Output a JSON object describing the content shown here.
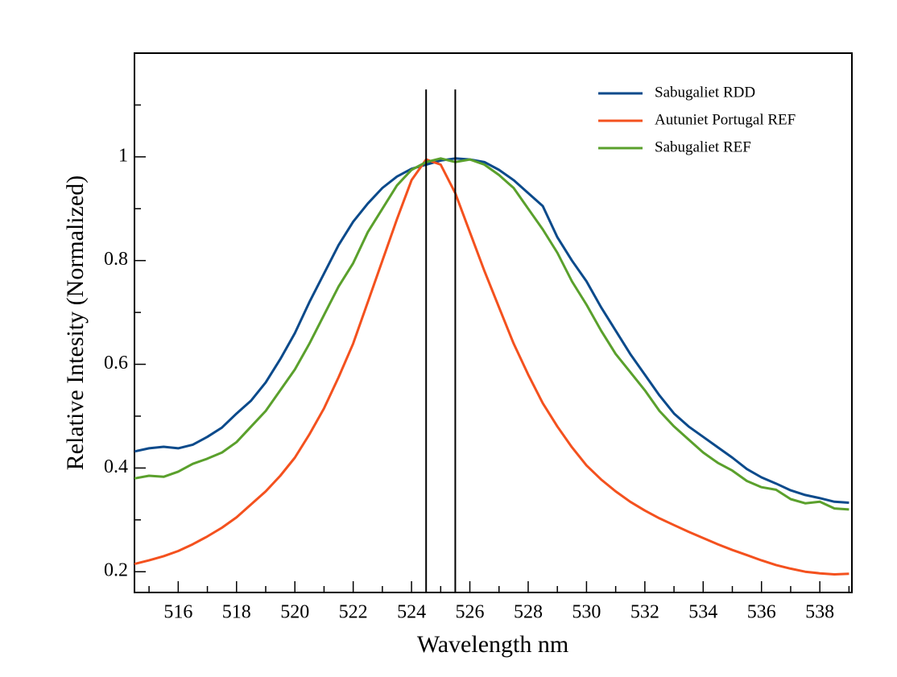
{
  "chart_data": {
    "type": "line",
    "xlabel": "Wavelength nm",
    "ylabel": "Relative Intesity (Normalized)",
    "xlim": [
      514.5,
      539.1
    ],
    "ylim": [
      0.16,
      1.2
    ],
    "xticks": [
      516,
      518,
      520,
      522,
      524,
      526,
      528,
      530,
      532,
      534,
      536,
      538
    ],
    "xticks_minor": [
      515,
      517,
      519,
      521,
      523,
      525,
      527,
      529,
      531,
      533,
      535,
      537,
      539
    ],
    "yticks": [
      0.2,
      0.4,
      0.6,
      0.8,
      1
    ],
    "yticks_minor": [
      0.3,
      0.5,
      0.7,
      0.9,
      1.1
    ],
    "legend": "upper right",
    "vlines": [
      {
        "x": 524.5,
        "ymax": 1.13,
        "color": "#000000"
      },
      {
        "x": 525.5,
        "ymax": 1.13,
        "color": "#000000"
      }
    ],
    "x": [
      514.5,
      515,
      515.5,
      516,
      516.5,
      517,
      517.5,
      518,
      518.5,
      519,
      519.5,
      520,
      520.5,
      521,
      521.5,
      522,
      522.5,
      523,
      523.5,
      524,
      524.5,
      525,
      525.5,
      526,
      526.5,
      527,
      527.5,
      528,
      528.5,
      529,
      529.5,
      530,
      530.5,
      531,
      531.5,
      532,
      532.5,
      533,
      533.5,
      534,
      534.5,
      535,
      535.5,
      536,
      536.5,
      537,
      537.5,
      538,
      538.5,
      539
    ],
    "series": [
      {
        "name": "Sabugaliet RDD",
        "color": "#0b4a8b",
        "values": [
          0.432,
          0.438,
          0.441,
          0.438,
          0.445,
          0.46,
          0.478,
          0.505,
          0.53,
          0.565,
          0.61,
          0.66,
          0.72,
          0.775,
          0.83,
          0.875,
          0.91,
          0.94,
          0.962,
          0.977,
          0.985,
          0.993,
          0.997,
          0.995,
          0.99,
          0.975,
          0.955,
          0.93,
          0.905,
          0.845,
          0.8,
          0.76,
          0.71,
          0.665,
          0.62,
          0.58,
          0.54,
          0.505,
          0.48,
          0.46,
          0.44,
          0.42,
          0.398,
          0.382,
          0.37,
          0.357,
          0.348,
          0.342,
          0.335,
          0.333
        ]
      },
      {
        "name": "Autuniet Portugal REF",
        "color": "#f4511e",
        "values": [
          0.215,
          0.222,
          0.23,
          0.24,
          0.253,
          0.268,
          0.285,
          0.305,
          0.33,
          0.355,
          0.385,
          0.42,
          0.465,
          0.515,
          0.575,
          0.64,
          0.72,
          0.8,
          0.88,
          0.955,
          0.995,
          0.985,
          0.93,
          0.855,
          0.78,
          0.71,
          0.64,
          0.58,
          0.525,
          0.48,
          0.44,
          0.405,
          0.378,
          0.355,
          0.335,
          0.318,
          0.303,
          0.29,
          0.277,
          0.265,
          0.253,
          0.242,
          0.232,
          0.222,
          0.213,
          0.206,
          0.2,
          0.197,
          0.195,
          0.196
        ]
      },
      {
        "name": "Sabugaliet REF",
        "color": "#5aa02c",
        "values": [
          0.38,
          0.385,
          0.383,
          0.393,
          0.408,
          0.418,
          0.43,
          0.45,
          0.48,
          0.51,
          0.55,
          0.59,
          0.64,
          0.695,
          0.75,
          0.795,
          0.855,
          0.9,
          0.945,
          0.975,
          0.99,
          0.997,
          0.99,
          0.995,
          0.985,
          0.965,
          0.94,
          0.9,
          0.86,
          0.815,
          0.76,
          0.715,
          0.665,
          0.62,
          0.585,
          0.55,
          0.51,
          0.48,
          0.455,
          0.43,
          0.41,
          0.395,
          0.375,
          0.363,
          0.358,
          0.34,
          0.332,
          0.335,
          0.322,
          0.32
        ]
      }
    ]
  }
}
